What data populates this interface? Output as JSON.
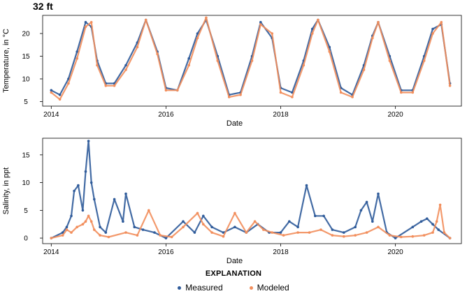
{
  "panel_title": "32 ft",
  "explanation_title": "EXPLANATION",
  "legend": [
    {
      "label": "Measured",
      "color": "#2f5b9a"
    },
    {
      "label": "Modeled",
      "color": "#f28e5c"
    }
  ],
  "chart_data": [
    {
      "type": "scatter",
      "title": "",
      "xlabel": "Date",
      "ylabel": "Temperature, in °C",
      "xlim": [
        2013.85,
        2021.15
      ],
      "ylim": [
        4,
        24
      ],
      "xticks": [
        2014,
        2016,
        2018,
        2020
      ],
      "yticks": [
        5,
        10,
        15,
        20
      ],
      "grid": false,
      "series": [
        {
          "name": "Measured",
          "color": "#2f5b9a",
          "x": [
            2014.0,
            2014.15,
            2014.3,
            2014.45,
            2014.6,
            2014.7,
            2014.8,
            2014.95,
            2015.1,
            2015.3,
            2015.5,
            2015.65,
            2015.85,
            2016.0,
            2016.2,
            2016.4,
            2016.55,
            2016.7,
            2016.9,
            2017.1,
            2017.3,
            2017.5,
            2017.65,
            2017.85,
            2018.0,
            2018.2,
            2018.4,
            2018.55,
            2018.65,
            2018.85,
            2019.05,
            2019.25,
            2019.45,
            2019.6,
            2019.7,
            2019.9,
            2020.1,
            2020.3,
            2020.5,
            2020.65,
            2020.8,
            2020.95
          ],
          "y": [
            7.5,
            6.5,
            10,
            16,
            22.5,
            21.5,
            14,
            9,
            9,
            13,
            18,
            23,
            16,
            8,
            7.5,
            14.5,
            20,
            23,
            15,
            6.5,
            7,
            15,
            22.5,
            19,
            8,
            7,
            14,
            21,
            23,
            17,
            8,
            6.5,
            13,
            19.5,
            22.5,
            15,
            7.5,
            7.5,
            15,
            21,
            22,
            9
          ]
        },
        {
          "name": "Modeled",
          "color": "#f28e5c",
          "x": [
            2014.0,
            2014.15,
            2014.3,
            2014.45,
            2014.6,
            2014.7,
            2014.8,
            2014.95,
            2015.1,
            2015.3,
            2015.5,
            2015.65,
            2015.85,
            2016.0,
            2016.2,
            2016.4,
            2016.55,
            2016.7,
            2016.9,
            2017.1,
            2017.3,
            2017.5,
            2017.65,
            2017.85,
            2018.0,
            2018.2,
            2018.4,
            2018.55,
            2018.65,
            2018.85,
            2019.05,
            2019.25,
            2019.45,
            2019.6,
            2019.7,
            2019.9,
            2020.1,
            2020.3,
            2020.5,
            2020.65,
            2020.8,
            2020.95
          ],
          "y": [
            7,
            5.5,
            9,
            14.5,
            21.5,
            22.5,
            13,
            8.5,
            8.5,
            12,
            17,
            23,
            15.5,
            7.5,
            7.5,
            13,
            19,
            23.5,
            14,
            6,
            6.5,
            14,
            22,
            20,
            7,
            6,
            13,
            20,
            23,
            16,
            7,
            6,
            12,
            19,
            22.5,
            14,
            7,
            7,
            14,
            20,
            22.5,
            8.5
          ]
        }
      ]
    },
    {
      "type": "scatter",
      "title": "",
      "xlabel": "Date",
      "ylabel": "Salinity, in ppt",
      "xlim": [
        2013.85,
        2021.15
      ],
      "ylim": [
        -1,
        18
      ],
      "xticks": [
        2014,
        2016,
        2018,
        2020
      ],
      "yticks": [
        0,
        5,
        10,
        15
      ],
      "grid": false,
      "series": [
        {
          "name": "Measured",
          "color": "#2f5b9a",
          "x": [
            2014.0,
            2014.2,
            2014.27,
            2014.35,
            2014.4,
            2014.47,
            2014.55,
            2014.6,
            2014.65,
            2014.7,
            2014.75,
            2014.85,
            2014.95,
            2015.1,
            2015.25,
            2015.3,
            2015.45,
            2015.6,
            2015.8,
            2016.0,
            2016.3,
            2016.5,
            2016.65,
            2016.8,
            2017.0,
            2017.2,
            2017.4,
            2017.6,
            2017.8,
            2018.0,
            2018.15,
            2018.3,
            2018.45,
            2018.6,
            2018.75,
            2018.9,
            2019.1,
            2019.3,
            2019.4,
            2019.5,
            2019.6,
            2019.7,
            2019.85,
            2020.0,
            2020.3,
            2020.45,
            2020.55,
            2020.65,
            2020.75,
            2020.95
          ],
          "y": [
            0,
            1,
            2,
            4,
            8.5,
            9.5,
            5,
            12,
            17.5,
            10,
            7,
            2,
            1,
            7,
            3,
            8,
            2,
            1.5,
            1,
            0,
            3,
            1,
            4,
            2,
            1,
            2,
            1,
            2.5,
            1,
            1,
            3,
            2,
            9.5,
            4,
            4,
            1.5,
            1,
            2,
            5,
            6.5,
            3,
            8,
            1,
            0,
            2,
            3,
            3.5,
            2.5,
            1.5,
            0
          ]
        },
        {
          "name": "Modeled",
          "color": "#f28e5c",
          "x": [
            2014.0,
            2014.2,
            2014.27,
            2014.35,
            2014.45,
            2014.55,
            2014.6,
            2014.65,
            2014.7,
            2014.75,
            2014.85,
            2015.0,
            2015.3,
            2015.5,
            2015.7,
            2015.9,
            2016.1,
            2016.3,
            2016.55,
            2016.65,
            2016.8,
            2017.0,
            2017.2,
            2017.4,
            2017.55,
            2017.7,
            2017.85,
            2018.05,
            2018.3,
            2018.5,
            2018.7,
            2018.9,
            2019.1,
            2019.3,
            2019.5,
            2019.7,
            2019.9,
            2020.1,
            2020.3,
            2020.5,
            2020.65,
            2020.72,
            2020.78,
            2020.85,
            2020.95
          ],
          "y": [
            0,
            0.5,
            1.5,
            1,
            2,
            2.5,
            3,
            4,
            3,
            1.5,
            0.5,
            0.2,
            1,
            0.5,
            5,
            0.5,
            0.2,
            2,
            4.5,
            2.5,
            1,
            0.3,
            4.5,
            1,
            3,
            1.5,
            1,
            0.5,
            1,
            1,
            1.5,
            0.5,
            0.3,
            0.5,
            1,
            2,
            0.5,
            0.2,
            0.3,
            0.5,
            1,
            3,
            6,
            1,
            0
          ]
        }
      ]
    }
  ]
}
